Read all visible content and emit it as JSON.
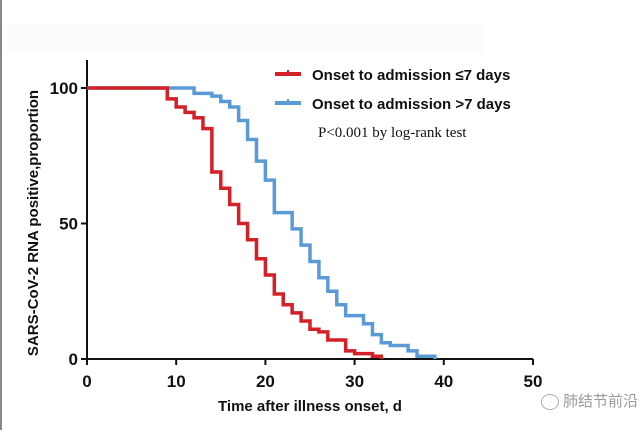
{
  "chart_data": {
    "type": "line",
    "subtype": "kaplan-meier-step",
    "title": "",
    "xlabel": "Time after illness onset, d",
    "ylabel": "SARS-CoV-2 RNA positive,proportion",
    "xlim": [
      0,
      50
    ],
    "ylim": [
      0,
      100
    ],
    "xticks": [
      0,
      10,
      20,
      30,
      40,
      50
    ],
    "yticks": [
      0,
      50,
      100
    ],
    "grid": false,
    "legend_position": "top-right",
    "annotation": "P<0.001 by log-rank test",
    "series": [
      {
        "name": "Onset to admission ≤7 days",
        "color": "#d42027",
        "x": [
          0,
          9,
          10,
          11,
          12,
          13,
          14,
          15,
          16,
          17,
          18,
          19,
          20,
          21,
          22,
          23,
          24,
          25,
          26,
          27,
          29,
          30,
          32,
          33
        ],
        "y": [
          100,
          96,
          93,
          91,
          89,
          85,
          69,
          63,
          57,
          50,
          44,
          37,
          31,
          24,
          20,
          17,
          14,
          11,
          10,
          7,
          3,
          2,
          1,
          0
        ]
      },
      {
        "name": "Onset to admission >7 days",
        "color": "#5b9bd5",
        "x": [
          0,
          9,
          12,
          14,
          15,
          16,
          17,
          18,
          19,
          20,
          21,
          22,
          23,
          24,
          25,
          26,
          27,
          28,
          29,
          31,
          32,
          33,
          34,
          36,
          37,
          39
        ],
        "y": [
          100,
          100,
          98,
          97,
          95,
          93,
          88,
          81,
          73,
          66,
          54,
          54,
          48,
          42,
          36,
          30,
          25,
          20,
          16,
          13,
          9,
          6,
          5,
          3,
          1,
          0
        ]
      }
    ]
  },
  "watermark": {
    "icon": "wechat-icon",
    "text": "肺结节前沿"
  }
}
